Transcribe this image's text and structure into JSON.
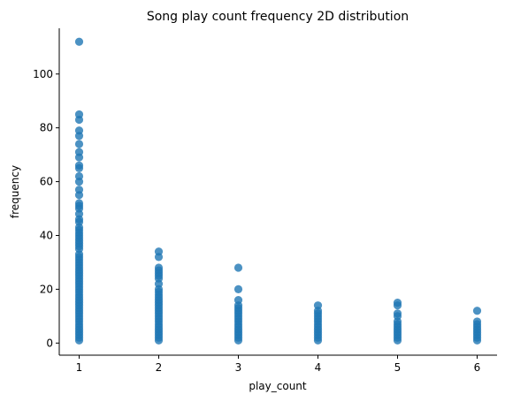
{
  "chart_data": {
    "type": "scatter",
    "title": "Song play count frequency 2D distribution",
    "xlabel": "play_count",
    "ylabel": "frequency",
    "xlim": [
      0.75,
      6.25
    ],
    "ylim": [
      -4.5,
      117
    ],
    "xticks": [
      1,
      2,
      3,
      4,
      5,
      6
    ],
    "yticks": [
      0,
      20,
      40,
      60,
      80,
      100
    ],
    "grid": false,
    "color": "#1f77b4",
    "series": [
      {
        "x": 1,
        "y": [
          1,
          2,
          3,
          4,
          5,
          6,
          7,
          8,
          9,
          10,
          11,
          12,
          13,
          14,
          15,
          16,
          17,
          18,
          19,
          20,
          21,
          22,
          23,
          24,
          25,
          26,
          27,
          28,
          29,
          30,
          31,
          32,
          33,
          35,
          36,
          37,
          38,
          39,
          40,
          41,
          42,
          43,
          45,
          46,
          48,
          50,
          51,
          52,
          55,
          57,
          60,
          62,
          65,
          66,
          69,
          71,
          74,
          77,
          79,
          83,
          85,
          112
        ]
      },
      {
        "x": 2,
        "y": [
          1,
          2,
          3,
          4,
          5,
          6,
          7,
          8,
          9,
          10,
          11,
          12,
          13,
          14,
          15,
          16,
          17,
          18,
          19,
          20,
          22,
          24,
          25,
          26,
          27,
          28,
          32,
          34
        ]
      },
      {
        "x": 3,
        "y": [
          1,
          2,
          3,
          4,
          5,
          6,
          7,
          8,
          9,
          10,
          11,
          12,
          13,
          14,
          16,
          20,
          28
        ]
      },
      {
        "x": 4,
        "y": [
          1,
          2,
          3,
          4,
          5,
          6,
          7,
          8,
          9,
          10,
          11,
          12,
          14
        ]
      },
      {
        "x": 5,
        "y": [
          1,
          2,
          3,
          4,
          5,
          6,
          7,
          8,
          10,
          11,
          14,
          15
        ]
      },
      {
        "x": 6,
        "y": [
          1,
          2,
          3,
          4,
          5,
          6,
          7,
          8,
          12
        ]
      }
    ]
  }
}
